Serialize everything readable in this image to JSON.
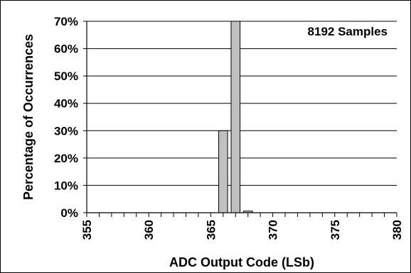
{
  "chart_data": {
    "type": "bar",
    "x": [
      355,
      356,
      357,
      358,
      359,
      360,
      361,
      362,
      363,
      364,
      365,
      366,
      367,
      368,
      369,
      370,
      371,
      372,
      373,
      374,
      375,
      376,
      377,
      378,
      379,
      380
    ],
    "values": [
      0,
      0,
      0,
      0,
      0,
      0,
      0,
      0,
      0,
      0,
      0,
      30,
      70,
      0.6,
      0,
      0,
      0,
      0,
      0,
      0,
      0,
      0,
      0,
      0,
      0,
      0
    ],
    "xlim": [
      355,
      380
    ],
    "xticks": [
      355,
      360,
      365,
      370,
      375,
      380
    ],
    "ylim": [
      0,
      70
    ],
    "yticks": [
      0,
      10,
      20,
      30,
      40,
      50,
      60,
      70
    ],
    "yticks_labels": [
      "0%",
      "10%",
      "20%",
      "30%",
      "40%",
      "50%",
      "60%",
      "70%"
    ],
    "xlabel": "ADC Output Code (LSb)",
    "ylabel": "Percentage of Occurrences",
    "annotation": "8192 Samples",
    "grid": "horizontal",
    "bar_color": "#c0c0c0",
    "bar_edge_color": "#000000",
    "frame_color": "#000000"
  }
}
